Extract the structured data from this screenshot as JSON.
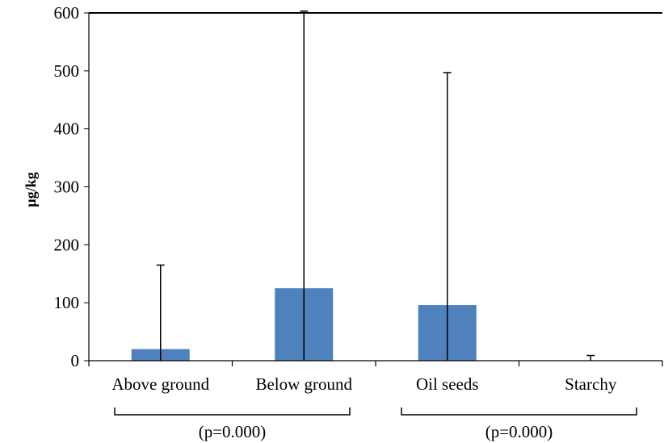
{
  "chart_data": {
    "type": "bar",
    "title": "",
    "xlabel": "",
    "ylabel": "µg/kg",
    "categories": [
      "Above ground",
      "Below ground",
      "Oil seeds",
      "Starchy"
    ],
    "values": [
      20,
      125,
      96,
      0
    ],
    "error_upper": [
      165,
      603,
      497,
      9
    ],
    "ylim": [
      0,
      600
    ],
    "yticks": [
      0,
      100,
      200,
      300,
      400,
      500,
      600
    ],
    "ytick_labels": [
      "0",
      "100",
      "200",
      "300",
      "400",
      "500",
      "600"
    ],
    "grid": false,
    "legend": "none",
    "bar_color": "#4f81bd",
    "groups": [
      {
        "label": "(p=0.000)",
        "categories": [
          "Above ground",
          "Below ground"
        ]
      },
      {
        "label": "(p=0.000)",
        "categories": [
          "Oil seeds",
          "Starchy"
        ]
      }
    ]
  }
}
